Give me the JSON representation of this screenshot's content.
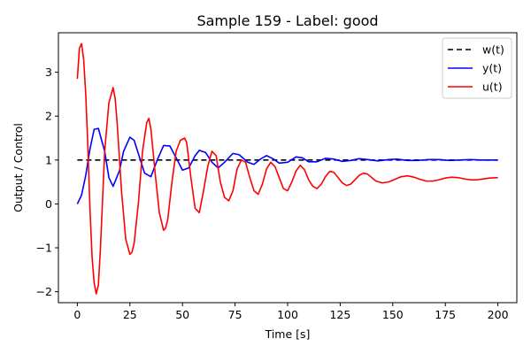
{
  "chart_data": {
    "type": "line",
    "title": "Sample 159 - Label: good",
    "xlabel": "Time [s]",
    "ylabel": "Output / Control",
    "xlim": [
      -9,
      209
    ],
    "ylim": [
      -2.25,
      3.9
    ],
    "xticks": [
      0,
      25,
      50,
      75,
      100,
      125,
      150,
      175,
      200
    ],
    "yticks": [
      -2,
      -1,
      0,
      1,
      2,
      3
    ],
    "xtick_labels": [
      "0",
      "25",
      "50",
      "75",
      "100",
      "125",
      "150",
      "175",
      "200"
    ],
    "ytick_labels": [
      "−2",
      "−1",
      "0",
      "1",
      "2",
      "3"
    ],
    "grid": false,
    "legend_position": "top-right",
    "series": [
      {
        "name": "w(t)",
        "color": "#000000",
        "dash": "6,4",
        "x": [
          0,
          200
        ],
        "y": [
          1.0,
          1.0
        ]
      },
      {
        "name": "y(t)",
        "color": "#0000ff",
        "dash": "",
        "x": [
          0,
          2,
          4,
          6,
          8,
          10,
          13,
          15,
          17,
          20,
          22,
          25,
          27,
          30,
          32,
          35,
          38,
          41,
          44,
          47,
          50,
          53,
          56,
          58,
          61,
          64,
          67,
          70,
          74,
          77,
          81,
          84,
          87,
          90,
          93,
          96,
          100,
          104,
          107,
          110,
          114,
          118,
          122,
          126,
          130,
          134,
          138,
          143,
          148,
          152,
          157,
          162,
          167,
          172,
          177,
          182,
          187,
          192,
          196,
          200
        ],
        "y": [
          0.0,
          0.2,
          0.65,
          1.25,
          1.7,
          1.72,
          1.2,
          0.6,
          0.4,
          0.75,
          1.2,
          1.52,
          1.45,
          1.0,
          0.7,
          0.62,
          1.0,
          1.33,
          1.32,
          1.05,
          0.77,
          0.82,
          1.1,
          1.22,
          1.17,
          0.95,
          0.82,
          0.95,
          1.15,
          1.12,
          0.95,
          0.9,
          1.02,
          1.1,
          1.03,
          0.93,
          0.95,
          1.07,
          1.05,
          0.96,
          0.96,
          1.04,
          1.02,
          0.97,
          0.99,
          1.03,
          1.01,
          0.98,
          1.01,
          1.02,
          0.99,
          0.99,
          1.01,
          1.01,
          0.99,
          1.0,
          1.01,
          1.0,
          1.0,
          1.0
        ]
      },
      {
        "name": "u(t)",
        "color": "#ff0000",
        "dash": "",
        "x": [
          0,
          1,
          2,
          3,
          4,
          5,
          6,
          7,
          8,
          9,
          10,
          11,
          12,
          13,
          15,
          17,
          18,
          19,
          21,
          23,
          25,
          26,
          27,
          29,
          31,
          33,
          34,
          35,
          37,
          39,
          41,
          42,
          43,
          45,
          47,
          49,
          51,
          52,
          54,
          56,
          58,
          60,
          62,
          64,
          66,
          68,
          70,
          72,
          74,
          76,
          78,
          80,
          82,
          84,
          86,
          88,
          90,
          92,
          94,
          96,
          98,
          100,
          102,
          104,
          106,
          108,
          110,
          112,
          114,
          116,
          118,
          120,
          122,
          124,
          126,
          128,
          130,
          132,
          134,
          136,
          138,
          140,
          142,
          145,
          148,
          151,
          154,
          157,
          160,
          163,
          166,
          169,
          172,
          175,
          178,
          181,
          184,
          187,
          190,
          193,
          196,
          200
        ],
        "y": [
          2.85,
          3.55,
          3.65,
          3.3,
          2.5,
          1.3,
          -0.1,
          -1.2,
          -1.8,
          -2.05,
          -1.85,
          -1.0,
          0.1,
          1.2,
          2.3,
          2.65,
          2.4,
          1.8,
          0.3,
          -0.8,
          -1.15,
          -1.1,
          -0.9,
          0.0,
          1.2,
          1.85,
          1.95,
          1.7,
          0.7,
          -0.2,
          -0.6,
          -0.55,
          -0.35,
          0.5,
          1.2,
          1.45,
          1.5,
          1.4,
          0.6,
          -0.1,
          -0.2,
          0.3,
          0.85,
          1.2,
          1.1,
          0.5,
          0.15,
          0.07,
          0.3,
          0.8,
          1.0,
          0.95,
          0.6,
          0.3,
          0.22,
          0.45,
          0.8,
          0.95,
          0.85,
          0.6,
          0.35,
          0.3,
          0.5,
          0.75,
          0.88,
          0.78,
          0.55,
          0.4,
          0.35,
          0.45,
          0.62,
          0.74,
          0.72,
          0.6,
          0.48,
          0.42,
          0.45,
          0.55,
          0.65,
          0.7,
          0.68,
          0.6,
          0.52,
          0.48,
          0.5,
          0.56,
          0.62,
          0.64,
          0.61,
          0.56,
          0.52,
          0.52,
          0.55,
          0.59,
          0.61,
          0.6,
          0.57,
          0.55,
          0.55,
          0.57,
          0.59,
          0.6
        ]
      }
    ]
  }
}
